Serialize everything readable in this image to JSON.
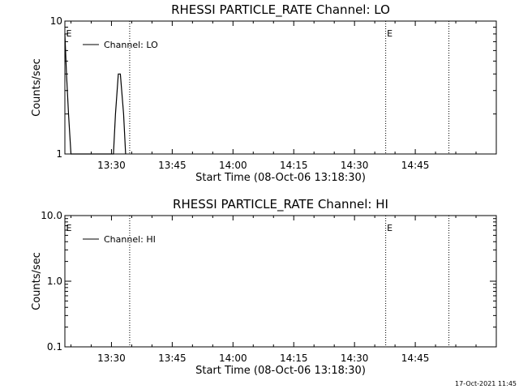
{
  "figure": {
    "footer_stamp": "17-Oct-2021 11:45"
  },
  "chart_data": [
    {
      "type": "line",
      "title": "RHESSI PARTICLE_RATE Channel: LO",
      "xlabel": "Start Time (08-Oct-06 13:18:30)",
      "ylabel": "Counts/sec",
      "yscale": "log",
      "xlim_minutes_after_13_18_30": [
        0,
        106.5
      ],
      "x_tick_labels": [
        "13:30",
        "13:45",
        "14:00",
        "14:15",
        "14:30",
        "14:45"
      ],
      "x_tick_minutes": [
        11.5,
        26.5,
        41.5,
        56.5,
        71.5,
        86.5
      ],
      "ylim": [
        1,
        10
      ],
      "y_tick_labels": [
        "1",
        "10"
      ],
      "y_tick_values": [
        1,
        10
      ],
      "series": [
        {
          "name": "Channel: LO",
          "x_minutes": [
            0.0,
            0.4,
            0.9,
            1.5,
            12.0,
            12.5,
            13.2,
            13.7,
            14.5,
            15.0
          ],
          "y": [
            8.0,
            4.0,
            2.0,
            1.0,
            1.0,
            2.0,
            4.0,
            4.0,
            2.0,
            1.0
          ]
        }
      ],
      "vertical_lines_minutes": [
        16.0,
        79.2,
        94.8
      ],
      "event_markers": [
        {
          "label": "E",
          "x_minutes": 0.3
        },
        {
          "label": "E",
          "x_minutes": 79.5
        }
      ],
      "legend": "top-left",
      "grid": false
    },
    {
      "type": "line",
      "title": "RHESSI PARTICLE_RATE Channel: HI",
      "xlabel": "Start Time (08-Oct-06 13:18:30)",
      "ylabel": "Counts/sec",
      "yscale": "log",
      "xlim_minutes_after_13_18_30": [
        0,
        106.5
      ],
      "x_tick_labels": [
        "13:30",
        "13:45",
        "14:00",
        "14:15",
        "14:30",
        "14:45"
      ],
      "x_tick_minutes": [
        11.5,
        26.5,
        41.5,
        56.5,
        71.5,
        86.5
      ],
      "ylim": [
        0.1,
        10
      ],
      "y_tick_labels": [
        "0.1",
        "1.0",
        "10.0"
      ],
      "y_tick_values": [
        0.1,
        1,
        10
      ],
      "series": [
        {
          "name": "Channel: HI",
          "x_minutes": [],
          "y": []
        }
      ],
      "vertical_lines_minutes": [
        16.0,
        79.2,
        94.8
      ],
      "event_markers": [
        {
          "label": "E",
          "x_minutes": 0.3
        },
        {
          "label": "E",
          "x_minutes": 79.5
        }
      ],
      "legend": "top-left",
      "grid": false
    }
  ]
}
